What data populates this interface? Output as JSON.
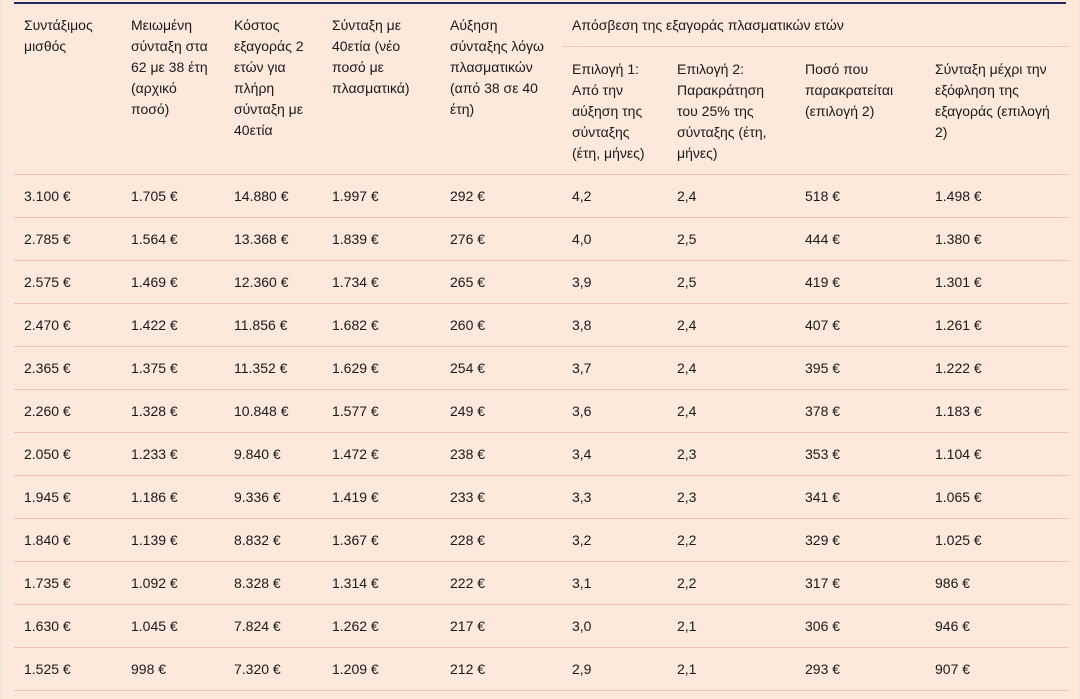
{
  "table": {
    "headers": {
      "salary": "Συντάξιμος μισθός",
      "reduced": "Μειωμένη σύνταξη στα 62 με 38 έτη (αρχικό ποσό)",
      "cost": "Κόστος εξαγοράς 2 ετών για πλήρη σύνταξη με 40ετία",
      "pension40": "Σύνταξη με 40ετία (νέο ποσό με πλασματικά)",
      "increase": "Αύξηση σύνταξης λόγω πλασματικών (από 38 σε 40 έτη)",
      "group": "Απόσβεση της εξαγοράς πλασματικών ετών",
      "option1": "Επιλογή 1: Από την αύξηση της σύνταξης (έτη, μήνες)",
      "option2": "Επιλογή 2: Παρακράτηση του 25% της σύνταξης (έτη, μήνες)",
      "withheld": "Ποσό που παρακρατείται (επιλογή 2)",
      "until_paid": "Σύνταξη μέχρι την εξόφληση της εξαγοράς (επιλογή 2)"
    },
    "rows": [
      [
        "3.100 €",
        "1.705 €",
        "14.880 €",
        "1.997 €",
        "292 €",
        "4,2",
        "2,4",
        "518 €",
        "1.498 €"
      ],
      [
        "2.785 €",
        "1.564 €",
        "13.368 €",
        "1.839 €",
        "276 €",
        "4,0",
        "2,5",
        "444 €",
        "1.380 €"
      ],
      [
        "2.575 €",
        "1.469 €",
        "12.360 €",
        "1.734 €",
        "265 €",
        "3,9",
        "2,5",
        "419 €",
        "1.301 €"
      ],
      [
        "2.470 €",
        "1.422 €",
        "11.856 €",
        "1.682 €",
        "260 €",
        "3,8",
        "2,4",
        "407 €",
        "1.261 €"
      ],
      [
        "2.365 €",
        "1.375 €",
        "11.352 €",
        "1.629 €",
        "254 €",
        "3,7",
        "2,4",
        "395 €",
        "1.222 €"
      ],
      [
        "2.260 €",
        "1.328 €",
        "10.848 €",
        "1.577 €",
        "249 €",
        "3,6",
        "2,4",
        "378 €",
        "1.183 €"
      ],
      [
        "2.050 €",
        "1.233 €",
        "9.840 €",
        "1.472 €",
        "238 €",
        "3,4",
        "2,3",
        "353 €",
        "1.104 €"
      ],
      [
        "1.945 €",
        "1.186 €",
        "9.336 €",
        "1.419 €",
        "233 €",
        "3,3",
        "2,3",
        "341 €",
        "1.065 €"
      ],
      [
        "1.840 €",
        "1.139 €",
        "8.832 €",
        "1.367 €",
        "228 €",
        "3,2",
        "2,2",
        "329 €",
        "1.025 €"
      ],
      [
        "1.735 €",
        "1.092 €",
        "8.328 €",
        "1.314 €",
        "222 €",
        "3,1",
        "2,2",
        "317 €",
        "986 €"
      ],
      [
        "1.630 €",
        "1.045 €",
        "7.824 €",
        "1.262 €",
        "217 €",
        "3,0",
        "2,1",
        "306 €",
        "946 €"
      ],
      [
        "1.525 €",
        "998 €",
        "7.320 €",
        "1.209 €",
        "212 €",
        "2,9",
        "2,1",
        "293 €",
        "907 €"
      ]
    ]
  }
}
